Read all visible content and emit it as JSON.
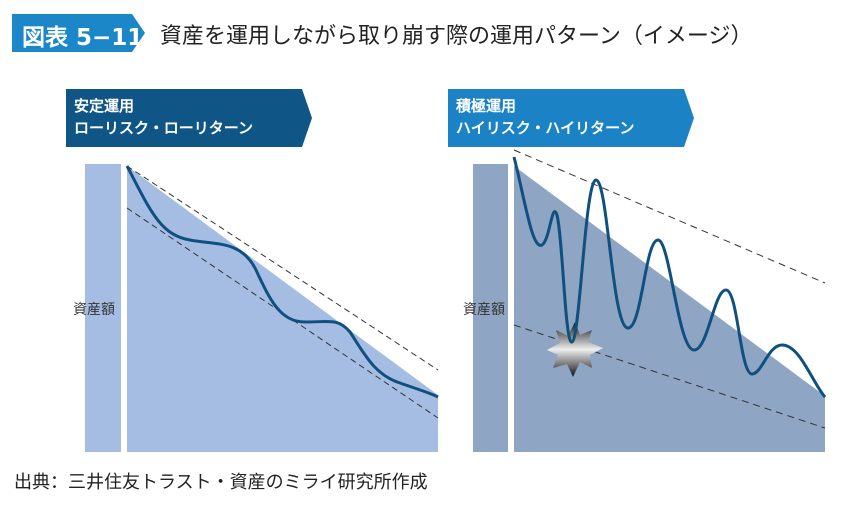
{
  "figure_label": "図表 5−11",
  "title": "資産を運用しながら取り崩す際の運用パターン（イメージ）",
  "panels": [
    {
      "heading_line1": "安定運用",
      "heading_line2": "ローリスク・ローリターン",
      "y_label": "資産額",
      "header_color": "#0f5585",
      "fill_color": "#a5bde2"
    },
    {
      "heading_line1": "積極運用",
      "heading_line2": "ハイリスク・ハイリターン",
      "y_label": "資産額",
      "header_color": "#1a82c5",
      "fill_color": "#8ea5c4"
    }
  ],
  "curve_color": "#0f5080",
  "source": "出典：三井住友トラスト・資産のミライ研究所作成"
}
